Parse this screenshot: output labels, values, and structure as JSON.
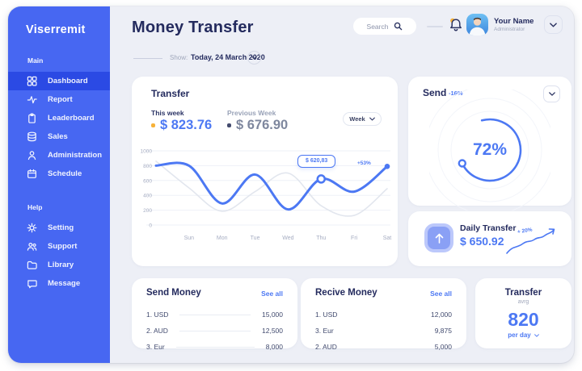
{
  "colors": {
    "sidebar": "#4767F2",
    "sidebar_active": "#2B4AE4",
    "accent_blue": "#4C78F3",
    "navy_text": "#242B5E",
    "muted_gray": "#9AA3B8",
    "orange_dot": "#F7B239",
    "previous_week_line": "#E2E6EE",
    "page_bg": "#EDEFF6",
    "card_bg": "#FFFFFF"
  },
  "sidebar": {
    "logo": "Viserremit",
    "sections": [
      {
        "label": "Main",
        "items": [
          {
            "label": "Dashboard",
            "icon": "dashboard-icon",
            "active": true
          },
          {
            "label": "Report",
            "icon": "report-icon",
            "active": false
          },
          {
            "label": "Leaderboard",
            "icon": "leaderboard-icon",
            "active": false
          },
          {
            "label": "Sales",
            "icon": "sales-icon",
            "active": false
          },
          {
            "label": "Administration",
            "icon": "administration-icon",
            "active": false
          },
          {
            "label": "Schedule",
            "icon": "schedule-icon",
            "active": false
          }
        ]
      },
      {
        "label": "Help",
        "items": [
          {
            "label": "Setting",
            "icon": "settings-icon",
            "active": false
          },
          {
            "label": "Support",
            "icon": "support-icon",
            "active": false
          },
          {
            "label": "Library",
            "icon": "library-icon",
            "active": false
          },
          {
            "label": "Message",
            "icon": "message-icon",
            "active": false
          }
        ]
      }
    ]
  },
  "header": {
    "title": "Money Transfer",
    "search_placeholder": "Search",
    "user_name": "Your Name",
    "user_role": "Administrator",
    "show_label": "Show:",
    "show_value": "Today, 24 March 2020"
  },
  "transfer_card": {
    "title": "Transfer",
    "this_week_label": "This week",
    "this_week_value": "$ 823.76",
    "previous_week_label": "Previous Week",
    "previous_week_value": "$ 676.90",
    "period_selector_label": "Week"
  },
  "chart_data": {
    "type": "line",
    "categories": [
      "Sun",
      "Mon",
      "Tue",
      "Wed",
      "Thu",
      "Fri",
      "Sat"
    ],
    "ylim": [
      0,
      1000
    ],
    "yticks": [
      1000,
      800,
      600,
      400,
      200,
      0
    ],
    "grid": true,
    "series": [
      {
        "name": "This week",
        "color": "#4C78F3",
        "start_value": 800,
        "values": [
          800,
          290,
          680,
          210,
          620.83,
          450,
          790
        ],
        "end_dot": true
      },
      {
        "name": "Previous Week",
        "color": "#E2E6EE",
        "start_value": 860,
        "values": [
          500,
          185,
          450,
          700,
          260,
          130,
          490
        ],
        "end_dot": false
      }
    ],
    "highlight": {
      "series_index": 0,
      "category": "Thu",
      "category_index": 4,
      "tooltip": "$ 620,83"
    },
    "end_annotation": "+53%"
  },
  "send_card": {
    "title": "Send",
    "change": "-16%",
    "progress_percent": 72,
    "progress_label": "72%"
  },
  "daily_transfer_card": {
    "title": "Daily Transfer",
    "value": "$ 650.92",
    "change": "+ 20%"
  },
  "send_money_card": {
    "title": "Send Money",
    "link": "See all",
    "rows": [
      {
        "label": "1. USD",
        "value": "15,000"
      },
      {
        "label": "2. AUD",
        "value": "12,500"
      },
      {
        "label": "3. Eur",
        "value": "8,000"
      }
    ]
  },
  "receive_money_card": {
    "title": "Recive Money",
    "link": "See all",
    "rows": [
      {
        "label": "1. USD",
        "value": "12,000"
      },
      {
        "label": "3. Eur",
        "value": "9,875"
      },
      {
        "label": "2. AUD",
        "value": "5,000"
      }
    ]
  },
  "transfer_avg_card": {
    "title": "Transfer",
    "subtitle": "avrg",
    "value": "820",
    "unit": "per day"
  }
}
